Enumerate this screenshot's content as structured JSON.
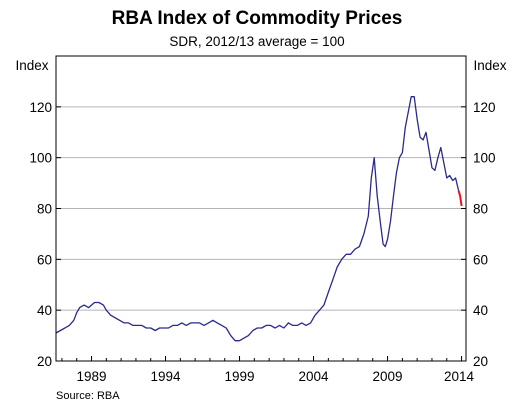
{
  "chart_data": {
    "type": "line",
    "title": "RBA Index of Commodity Prices",
    "subtitle": "SDR, 2012/13 average = 100",
    "ylabel_left": "Index",
    "ylabel_right": "Index",
    "source": "Source: RBA",
    "xlim": [
      1986.6,
      2014.3
    ],
    "ylim": [
      20,
      140
    ],
    "y_ticks": [
      20,
      40,
      60,
      80,
      100,
      120
    ],
    "x_tick_labels": [
      "1989",
      "1994",
      "1999",
      "2004",
      "2009",
      "2014"
    ],
    "x_tick_positions": [
      1989,
      1994,
      1999,
      2004,
      2009,
      2014
    ],
    "grid": true,
    "colors": {
      "series": "#2a2a8c",
      "highlight": "#e8141e",
      "grid": "#b4b4b4"
    },
    "series": [
      {
        "x": [
          1986.6,
          1986.9,
          1987.2,
          1987.5,
          1987.8,
          1988.0,
          1988.2,
          1988.5,
          1988.8,
          1989.0,
          1989.2,
          1989.5,
          1989.8,
          1990.0,
          1990.3,
          1990.6,
          1990.9,
          1991.2,
          1991.5,
          1991.8,
          1992.1,
          1992.4,
          1992.7,
          1993.0,
          1993.3,
          1993.6,
          1993.9,
          1994.2,
          1994.5,
          1994.8,
          1995.1,
          1995.4,
          1995.7,
          1996.0,
          1996.3,
          1996.6,
          1996.9,
          1997.2,
          1997.5,
          1997.8,
          1998.1,
          1998.4,
          1998.7,
          1999.0,
          1999.3,
          1999.6,
          1999.9,
          2000.2,
          2000.5,
          2000.8,
          2001.1,
          2001.4,
          2001.7,
          2002.0,
          2002.3,
          2002.6,
          2002.9,
          2003.2,
          2003.5,
          2003.8,
          2004.1,
          2004.4,
          2004.7,
          2005.0,
          2005.3,
          2005.6,
          2005.9,
          2006.2,
          2006.5,
          2006.8,
          2007.1,
          2007.4,
          2007.7,
          2007.9,
          2008.1,
          2008.3,
          2008.5,
          2008.7,
          2008.85,
          2009.0,
          2009.2,
          2009.4,
          2009.6,
          2009.8,
          2010.0,
          2010.2,
          2010.4,
          2010.6,
          2010.8,
          2011.0,
          2011.2,
          2011.4,
          2011.6,
          2011.8,
          2012.0,
          2012.2,
          2012.4,
          2012.6,
          2012.8,
          2013.0,
          2013.2,
          2013.4,
          2013.6,
          2013.8
        ],
        "values": [
          31,
          32,
          33,
          34,
          36,
          39,
          41,
          42,
          41,
          42,
          43,
          43,
          42,
          40,
          38,
          37,
          36,
          35,
          35,
          34,
          34,
          34,
          33,
          33,
          32,
          33,
          33,
          33,
          34,
          34,
          35,
          34,
          35,
          35,
          35,
          34,
          35,
          36,
          35,
          34,
          33,
          30,
          28,
          28,
          29,
          30,
          32,
          33,
          33,
          34,
          34,
          33,
          34,
          33,
          35,
          34,
          34,
          35,
          34,
          35,
          38,
          40,
          42,
          47,
          52,
          57,
          60,
          62,
          62,
          64,
          65,
          70,
          77,
          92,
          100,
          85,
          75,
          66,
          65,
          68,
          75,
          85,
          94,
          100,
          102,
          112,
          118,
          124,
          124,
          115,
          108,
          107,
          110,
          103,
          96,
          95,
          100,
          104,
          98,
          92,
          93,
          91,
          92,
          87
        ]
      },
      {
        "name": "",
        "x": [
          2013.8,
          2013.9,
          2014.0
        ],
        "values": [
          87,
          85,
          81
        ]
      }
    ]
  }
}
